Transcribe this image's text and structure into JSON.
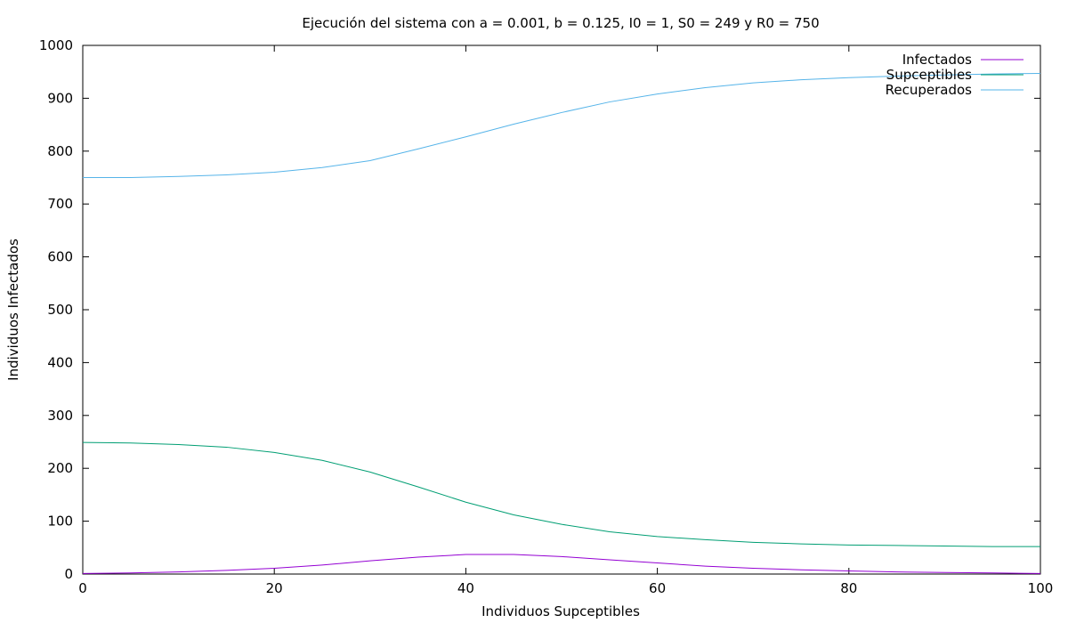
{
  "chart_data": {
    "type": "line",
    "title": "Ejecución del sistema con a = 0.001, b = 0.125, I0 = 1, S0 = 249 y R0 = 750",
    "xlabel": "Individuos Supceptibles",
    "ylabel": "Individuos Infectados",
    "xlim": [
      0,
      100
    ],
    "ylim": [
      0,
      1000
    ],
    "x_ticks": [
      0,
      20,
      40,
      60,
      80,
      100
    ],
    "y_ticks": [
      0,
      100,
      200,
      300,
      400,
      500,
      600,
      700,
      800,
      900,
      1000
    ],
    "grid": false,
    "legend_position": "top-right",
    "x": [
      0,
      5,
      10,
      15,
      20,
      25,
      30,
      35,
      40,
      45,
      50,
      55,
      60,
      65,
      70,
      75,
      80,
      85,
      90,
      95,
      100
    ],
    "series": [
      {
        "name": "Infectados",
        "color": "#9400d3",
        "values": [
          1,
          2,
          4,
          7,
          11,
          17,
          25,
          32,
          37,
          37,
          33,
          27,
          21,
          15,
          11,
          8,
          6,
          4,
          3,
          2,
          1
        ]
      },
      {
        "name": "Supceptibles",
        "color": "#009e73",
        "values": [
          249,
          248,
          245,
          240,
          230,
          215,
          193,
          165,
          136,
          112,
          94,
          80,
          71,
          65,
          60,
          57,
          55,
          54,
          53,
          52,
          52
        ]
      },
      {
        "name": "Recuperados",
        "color": "#56b4e9",
        "values": [
          750,
          750,
          752,
          755,
          760,
          769,
          782,
          804,
          827,
          851,
          873,
          893,
          908,
          920,
          929,
          935,
          939,
          942,
          944,
          946,
          947
        ]
      }
    ]
  }
}
